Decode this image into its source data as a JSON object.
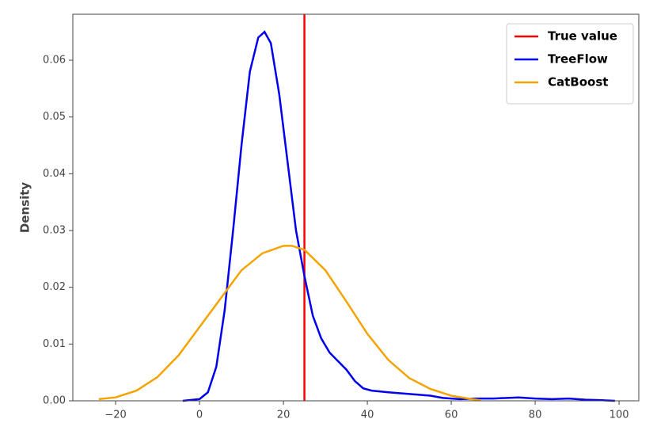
{
  "chart_data": {
    "type": "line",
    "ylabel": "Density",
    "xlim": [
      -30.2,
      104.7
    ],
    "ylim": [
      0,
      0.0681
    ],
    "xticks": [
      {
        "value": -20,
        "label": "−20"
      },
      0,
      20,
      40,
      60,
      80,
      100
    ],
    "yticks": [
      {
        "value": 0,
        "label": "0.00"
      },
      {
        "value": 0.01,
        "label": "0.01"
      },
      {
        "value": 0.02,
        "label": "0.02"
      },
      {
        "value": 0.03,
        "label": "0.03"
      },
      {
        "value": 0.04,
        "label": "0.04"
      },
      {
        "value": 0.05,
        "label": "0.05"
      },
      {
        "value": 0.06,
        "label": "0.06"
      }
    ],
    "legend": "upper right",
    "series": [
      {
        "name": "True value",
        "color": "#ff0000",
        "kind": "vline",
        "x": 25
      },
      {
        "name": "TreeFlow",
        "color": "#0000ee",
        "x": [
          -4,
          0,
          2,
          4,
          6,
          8,
          10,
          12,
          14,
          15.5,
          17,
          19,
          21,
          23,
          25,
          27,
          29,
          31,
          33,
          35,
          37,
          39,
          41,
          45,
          50,
          55,
          58,
          62,
          66,
          70,
          76,
          80,
          84,
          88,
          92,
          96,
          99
        ],
        "values": [
          0,
          0.0003,
          0.0015,
          0.006,
          0.016,
          0.03,
          0.045,
          0.058,
          0.064,
          0.065,
          0.063,
          0.054,
          0.042,
          0.03,
          0.022,
          0.015,
          0.011,
          0.0085,
          0.007,
          0.0055,
          0.0035,
          0.0022,
          0.0018,
          0.0015,
          0.0012,
          0.0009,
          0.0005,
          0.0003,
          0.0004,
          0.0004,
          0.0006,
          0.0004,
          0.0003,
          0.0004,
          0.0002,
          0.0001,
          0
        ]
      },
      {
        "name": "CatBoost",
        "color": "#f5a300",
        "x": [
          -24,
          -20,
          -15,
          -10,
          -5,
          0,
          5,
          10,
          15,
          20,
          22,
          25,
          30,
          35,
          40,
          45,
          50,
          55,
          60,
          65,
          67
        ],
        "values": [
          0.0003,
          0.0006,
          0.0018,
          0.0042,
          0.008,
          0.013,
          0.018,
          0.023,
          0.026,
          0.0273,
          0.0273,
          0.0266,
          0.023,
          0.0175,
          0.0118,
          0.0072,
          0.004,
          0.0021,
          0.0009,
          0.0003,
          0.0001
        ]
      }
    ]
  }
}
